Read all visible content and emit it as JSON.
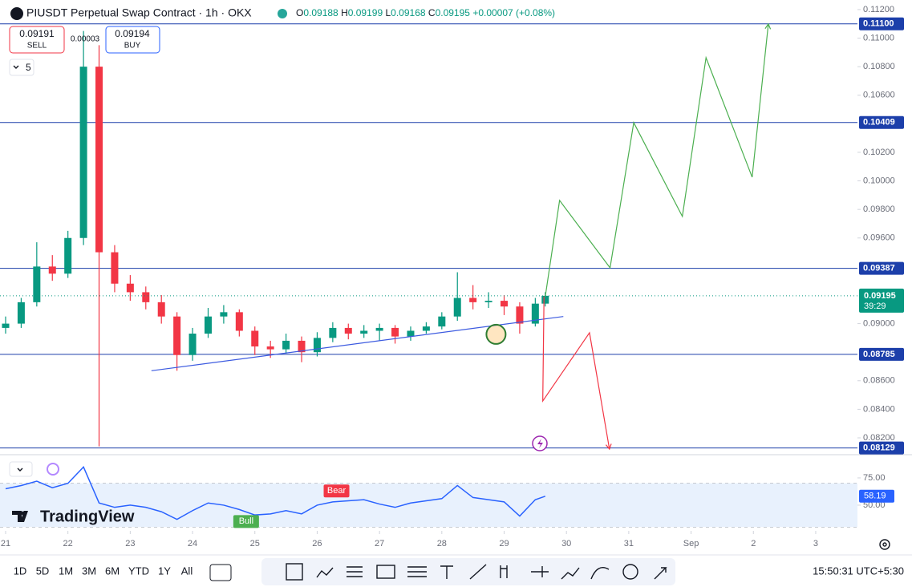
{
  "header": {
    "title": "PIUSDT Perpetual Swap Contract · 1h · OKX",
    "ohlc": [
      {
        "key": "O",
        "value": 0.09188
      },
      {
        "key": "H",
        "value": 0.09199
      },
      {
        "key": "L",
        "value": 0.09168
      },
      {
        "key": "C",
        "value": 0.09195
      }
    ],
    "change": "+0.00007 (+0.08%)"
  },
  "trade": {
    "sell_price": 0.09191,
    "sell_label": "SELL",
    "spread": 3e-05,
    "buy_price": 0.09194,
    "buy_label": "BUY",
    "interval_count": "5"
  },
  "logo": "TradingView",
  "chart_data": [
    {
      "type": "candlestick",
      "x": [
        0,
        0.25,
        0.5,
        0.75,
        1,
        1.25,
        1.5,
        1.75,
        2,
        2.25,
        2.5,
        2.75,
        3,
        3.25,
        3.5,
        3.75,
        4,
        4.25,
        4.5,
        4.75,
        5,
        5.25,
        5.5,
        5.75,
        6,
        6.25,
        6.5,
        6.75,
        7,
        7.25,
        7.5,
        7.75,
        8,
        8.25,
        8.5,
        8.66
      ],
      "open": [
        0.0897,
        0.09,
        0.0915,
        0.094,
        0.0935,
        0.096,
        0.108,
        0.095,
        0.0928,
        0.0922,
        0.0915,
        0.0905,
        0.0878,
        0.0893,
        0.0905,
        0.0908,
        0.0895,
        0.0884,
        0.0882,
        0.0888,
        0.088,
        0.089,
        0.0897,
        0.0893,
        0.0895,
        0.0897,
        0.0891,
        0.0895,
        0.0898,
        0.0905,
        0.0918,
        0.0915,
        0.0916,
        0.0912,
        0.09,
        0.0914
      ],
      "high": [
        0.0905,
        0.0918,
        0.0957,
        0.0948,
        0.0965,
        0.1105,
        0.1095,
        0.0955,
        0.0934,
        0.0926,
        0.092,
        0.0908,
        0.0897,
        0.0911,
        0.0913,
        0.091,
        0.0898,
        0.0888,
        0.0893,
        0.0891,
        0.0894,
        0.0901,
        0.09,
        0.0899,
        0.09,
        0.0899,
        0.0898,
        0.0901,
        0.0908,
        0.0936,
        0.0927,
        0.0922,
        0.092,
        0.0915,
        0.0918,
        0.0922
      ],
      "low": [
        0.0893,
        0.0897,
        0.0912,
        0.093,
        0.0932,
        0.0955,
        0.0814,
        0.0922,
        0.0916,
        0.091,
        0.09,
        0.0867,
        0.0874,
        0.089,
        0.09,
        0.0891,
        0.0878,
        0.0876,
        0.0879,
        0.0873,
        0.0877,
        0.0887,
        0.0889,
        0.089,
        0.0888,
        0.0886,
        0.0888,
        0.0893,
        0.0896,
        0.0902,
        0.091,
        0.0911,
        0.0906,
        0.0893,
        0.0898,
        0.0912
      ],
      "close": [
        0.09,
        0.0915,
        0.094,
        0.0935,
        0.096,
        0.108,
        0.095,
        0.0928,
        0.0922,
        0.0915,
        0.0905,
        0.0878,
        0.0893,
        0.0905,
        0.0908,
        0.0895,
        0.0884,
        0.0882,
        0.0888,
        0.088,
        0.089,
        0.0897,
        0.0893,
        0.0895,
        0.0897,
        0.0891,
        0.0895,
        0.0898,
        0.0905,
        0.0918,
        0.0915,
        0.0916,
        0.0912,
        0.09,
        0.0914,
        0.09195
      ],
      "up_color": "#089981",
      "down_color": "#f23645",
      "countdown": "39:29",
      "xlim": [
        -0.09,
        13.67
      ],
      "xticks": [
        {
          "value": 0,
          "label": "21"
        },
        {
          "value": 1,
          "label": "22"
        },
        {
          "value": 2,
          "label": "23"
        },
        {
          "value": 3,
          "label": "24"
        },
        {
          "value": 4,
          "label": "25"
        },
        {
          "value": 5,
          "label": "26"
        },
        {
          "value": 6,
          "label": "27"
        },
        {
          "value": 7,
          "label": "28"
        },
        {
          "value": 8,
          "label": "29"
        },
        {
          "value": 9,
          "label": "30"
        },
        {
          "value": 10,
          "label": "31"
        },
        {
          "value": 11,
          "label": "Sep"
        },
        {
          "value": 12,
          "label": "2"
        },
        {
          "value": 13,
          "label": "3"
        }
      ],
      "ylim": [
        0.08082,
        0.11267
      ],
      "yticks": [
        {
          "value": 0.112,
          "label": "0.11200"
        },
        {
          "value": 0.11,
          "label": "0.11000"
        },
        {
          "value": 0.108,
          "label": "0.10800"
        },
        {
          "value": 0.106,
          "label": "0.10600"
        },
        {
          "value": 0.102,
          "label": "0.10200"
        },
        {
          "value": 0.1,
          "label": "0.10000"
        },
        {
          "value": 0.098,
          "label": "0.09800"
        },
        {
          "value": 0.096,
          "label": "0.09600"
        },
        {
          "value": 0.09,
          "label": "0.09000"
        },
        {
          "value": 0.086,
          "label": "0.08600"
        },
        {
          "value": 0.084,
          "label": "0.08400"
        },
        {
          "value": 0.082,
          "label": "0.08200"
        }
      ],
      "levels": [
        {
          "value": 0.111,
          "label": "0.11100"
        },
        {
          "value": 0.10409,
          "label": "0.10409"
        },
        {
          "value": 0.09387,
          "label": "0.09387"
        },
        {
          "value": 0.08785,
          "label": "0.08785"
        },
        {
          "value": 0.08129,
          "label": "0.08129"
        }
      ],
      "level_color": "#1c3faa",
      "trendline": {
        "x": [
          2.34,
          8.95
        ],
        "y": [
          0.0867,
          0.0905
        ],
        "color": "#3d5be0"
      },
      "projection_up": {
        "x": [
          8.66,
          8.89,
          9.7,
          10.08,
          10.86,
          11.24,
          11.98,
          12.24
        ],
        "y": [
          0.09189,
          0.09863,
          0.09391,
          0.10408,
          0.09751,
          0.10863,
          0.10026,
          0.11099
        ],
        "color": "#4caf50"
      },
      "projection_down": {
        "x": [
          8.64,
          8.62,
          9.37,
          9.69
        ],
        "y": [
          0.09189,
          0.08458,
          0.08936,
          0.08121
        ],
        "color": "#f23645"
      },
      "marker": {
        "x": 7.87,
        "y": 0.08925
      }
    },
    {
      "type": "line",
      "x": [
        0,
        0.25,
        0.5,
        0.75,
        1,
        1.25,
        1.5,
        1.75,
        2,
        2.25,
        2.5,
        2.75,
        3,
        3.25,
        3.5,
        3.75,
        4,
        4.25,
        4.5,
        4.75,
        5,
        5.25,
        5.5,
        5.75,
        6,
        6.25,
        6.5,
        6.75,
        7,
        7.25,
        7.5,
        7.75,
        8,
        8.25,
        8.5,
        8.66
      ],
      "values": [
        65,
        68,
        72,
        66,
        70,
        85,
        52,
        48,
        50,
        48,
        44,
        37,
        45,
        52,
        50,
        46,
        41,
        42,
        45,
        42,
        50,
        53,
        54,
        55,
        51,
        48,
        52,
        54,
        56,
        68,
        57,
        55,
        53,
        40,
        55,
        58.19
      ],
      "color": "#2962ff",
      "xlim": [
        -0.09,
        13.67
      ],
      "ylim": [
        27.9,
        92.6
      ],
      "yticks": [
        {
          "value": 75,
          "label": "75.00"
        },
        {
          "value": 50,
          "label": "50.00"
        }
      ],
      "band": [
        30,
        70
      ],
      "annotations": [
        {
          "text": "Bull",
          "x": 3.86,
          "y": 35,
          "color": "#4caf50"
        },
        {
          "text": "Bear",
          "x": 5.31,
          "y": 63,
          "color": "#f23645"
        }
      ]
    }
  ],
  "toolbar": {
    "ranges": [
      "1D",
      "5D",
      "1M",
      "3M",
      "6M",
      "YTD",
      "1Y",
      "All"
    ],
    "clock": "15:50:31 UTC+5:30"
  }
}
